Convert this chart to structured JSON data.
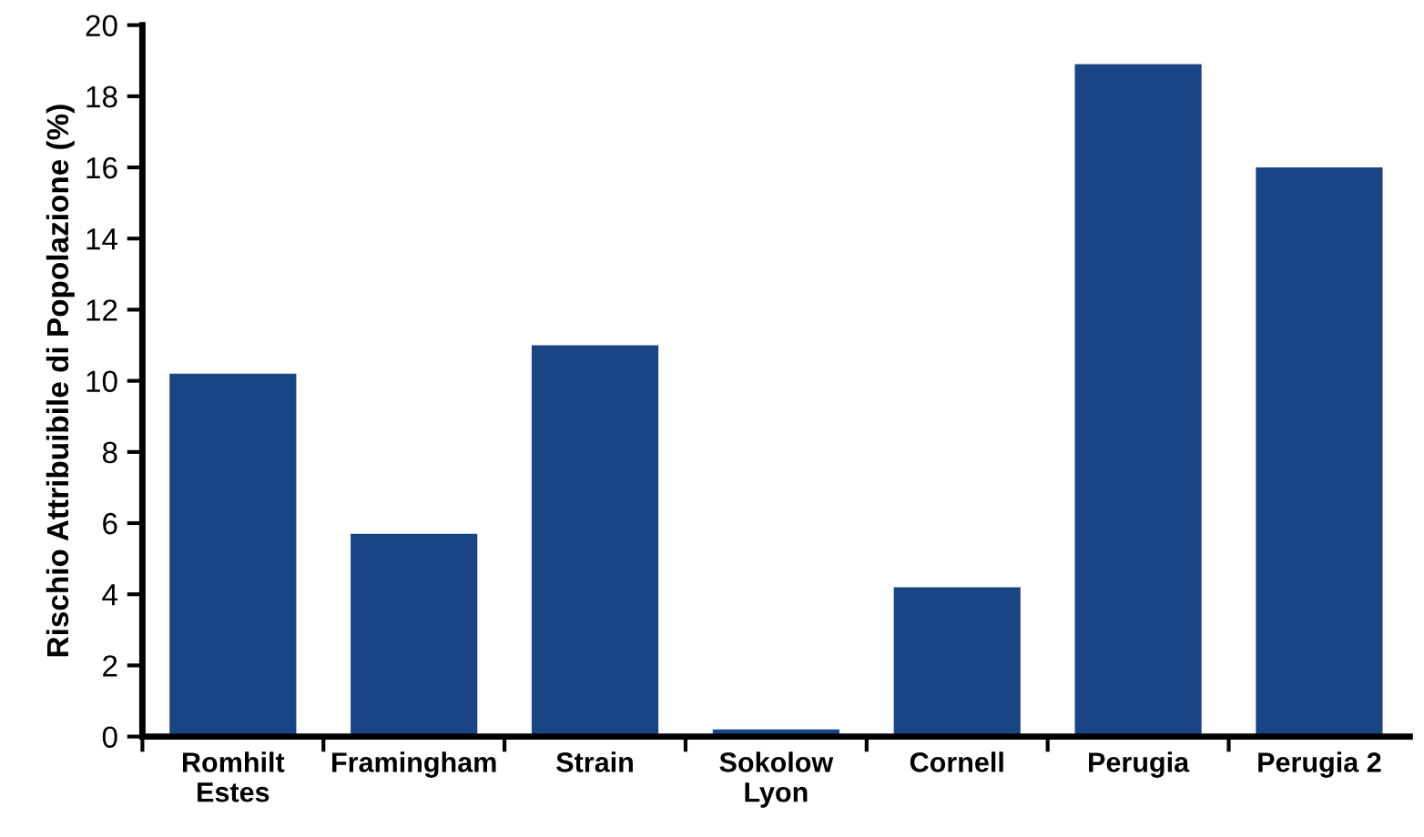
{
  "chart_data": {
    "type": "bar",
    "ylabel": "Rischio Attribuibile di Popolazione (%)",
    "categories": [
      "Romhilt\nEstes",
      "Framingham",
      "Strain",
      "Sokolow\nLyon",
      "Cornell",
      "Perugia",
      "Perugia 2"
    ],
    "values": [
      10.2,
      5.7,
      11.0,
      0.2,
      4.2,
      18.9,
      16.0
    ],
    "color": "#1a4584",
    "ylim": [
      0,
      20
    ],
    "yticks": [
      0,
      2,
      4,
      6,
      8,
      10,
      12,
      14,
      16,
      18,
      20
    ],
    "grid": false
  }
}
